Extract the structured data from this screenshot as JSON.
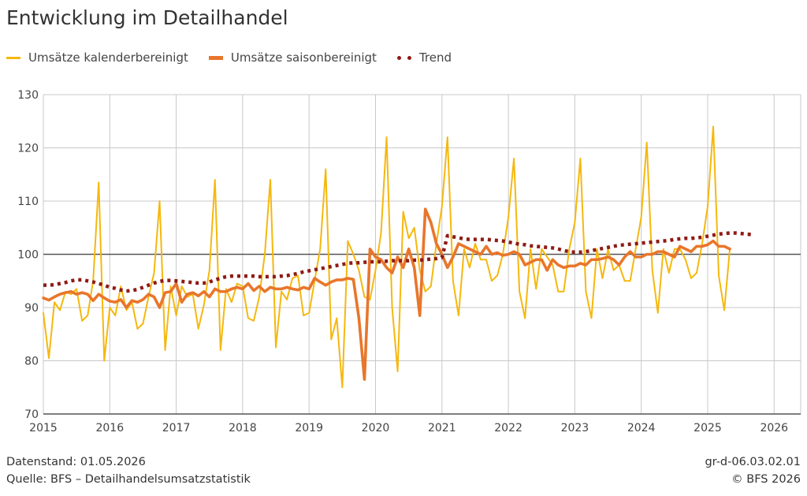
{
  "title": "Entwicklung im Detailhandel",
  "legend": [
    {
      "label": "Umsätze kalenderbereinigt",
      "color": "#F5B80E",
      "style": "solid"
    },
    {
      "label": "Umsätze saisonbereinigt",
      "color": "#E8762B",
      "style": "solid"
    },
    {
      "label": "Trend",
      "color": "#8E1B15",
      "style": "dotted"
    }
  ],
  "footer": {
    "datenstand": "Datenstand: 01.05.2026",
    "quelle": "Quelle: BFS – Detailhandelsumsatzstatistik",
    "code": "gr-d-06.03.02.01",
    "copyright": "© BFS 2026"
  },
  "chart_data": {
    "type": "line",
    "title": "Entwicklung im Detailhandel",
    "xlabel": "",
    "ylabel": "",
    "xlim": [
      2015,
      2026.4
    ],
    "ylim": [
      70,
      130
    ],
    "x_ticks": [
      2015,
      2016,
      2017,
      2018,
      2019,
      2020,
      2021,
      2022,
      2023,
      2024,
      2025,
      2026
    ],
    "y_ticks": [
      70,
      80,
      90,
      100,
      110,
      120,
      130
    ],
    "reference_line": 100,
    "grid": true,
    "legend_position": "top-left",
    "x_start": "2015-01",
    "x_step": "1 month",
    "series": [
      {
        "name": "Umsätze kalenderbereinigt",
        "color": "#F5B80E",
        "values": [
          89,
          80.5,
          91,
          89.5,
          93,
          92.5,
          93.5,
          87.5,
          88.5,
          95,
          113.5,
          80,
          90,
          88.5,
          94,
          89.5,
          91,
          86,
          87,
          92,
          96.5,
          110,
          82,
          94,
          88.5,
          94,
          92,
          92.5,
          86,
          90.5,
          97,
          114,
          82,
          93.5,
          91,
          94.5,
          94,
          88,
          87.5,
          92,
          100,
          114,
          82.5,
          93,
          91.5,
          95.5,
          96,
          88.5,
          89,
          95,
          101,
          116,
          84,
          88,
          75,
          102.5,
          100,
          97,
          92,
          91.5,
          97,
          104,
          122,
          90,
          78,
          108,
          103,
          105,
          97,
          93,
          94,
          102,
          109,
          122,
          95,
          88.5,
          101,
          97.5,
          102,
          99,
          99,
          95,
          96,
          100,
          107,
          118,
          93,
          88,
          101,
          93.5,
          101,
          99.5,
          98,
          93,
          93,
          101,
          106,
          118,
          93,
          88,
          101,
          95.5,
          101,
          97,
          98,
          95,
          95,
          101,
          107,
          121,
          97,
          89,
          101,
          96.5,
          101,
          101,
          99,
          95.5,
          96.5,
          102,
          109,
          124,
          96,
          89.5,
          101
        ]
      },
      {
        "name": "Umsätze saisonbereinigt",
        "color": "#E8762B",
        "values": [
          91.8,
          91.4,
          92,
          92.5,
          92.8,
          93,
          92.5,
          92.8,
          92.5,
          91.3,
          92.5,
          91.8,
          91.2,
          91,
          91.5,
          90,
          91.3,
          91,
          91.5,
          92.5,
          92,
          90,
          92.8,
          93,
          94.5,
          91,
          92.5,
          92.8,
          92.2,
          93,
          92,
          93.5,
          93,
          93,
          93.5,
          93.8,
          93.5,
          94.5,
          93.2,
          94,
          93,
          93.8,
          93.5,
          93.5,
          93.8,
          93.5,
          93.3,
          93.8,
          93.5,
          95.5,
          94.8,
          94.2,
          94.8,
          95.2,
          95.2,
          95.5,
          95.3,
          88,
          76.5,
          101,
          99.5,
          99,
          97.5,
          96.5,
          99.5,
          97.5,
          101,
          97.5,
          88.5,
          108.5,
          106,
          102,
          100,
          97.5,
          99.5,
          102,
          101.5,
          101,
          100.5,
          100,
          101.5,
          100,
          100.3,
          99.8,
          100,
          100.5,
          100,
          98,
          98.5,
          99,
          99,
          97,
          99,
          98,
          97.5,
          97.8,
          97.8,
          98.3,
          98,
          99,
          99,
          99.2,
          99.5,
          99,
          98,
          99.5,
          100.5,
          99.5,
          99.5,
          100,
          100,
          100.5,
          100.5,
          100,
          99.5,
          101.5,
          101,
          100.5,
          101.5,
          101.5,
          101.8,
          102.5,
          101.5,
          101.5,
          101
        ]
      },
      {
        "name": "Trend",
        "color": "#8E1B15",
        "values": [
          94.2,
          94.2,
          94.3,
          94.5,
          94.7,
          95,
          95.2,
          95.2,
          95,
          94.8,
          94.5,
          94.2,
          93.8,
          93.6,
          93.3,
          93.1,
          93.2,
          93.4,
          93.8,
          94.2,
          94.6,
          94.9,
          95.1,
          95.1,
          95,
          94.9,
          94.8,
          94.7,
          94.6,
          94.6,
          94.8,
          95.2,
          95.5,
          95.8,
          95.9,
          95.9,
          95.9,
          95.9,
          95.9,
          95.8,
          95.8,
          95.8,
          95.8,
          95.9,
          96,
          96.2,
          96.4,
          96.7,
          96.9,
          97.1,
          97.3,
          97.5,
          97.7,
          97.9,
          98.1,
          98.3,
          98.4,
          98.4,
          98.5,
          98.6,
          98.6,
          98.6,
          98.7,
          98.8,
          98.8,
          98.8,
          98.8,
          98.9,
          98.9,
          99,
          99.1,
          99.2,
          99.4,
          103.5,
          103.3,
          103.1,
          102.9,
          102.8,
          102.8,
          102.8,
          102.8,
          102.7,
          102.6,
          102.5,
          102.3,
          102.1,
          101.9,
          101.8,
          101.6,
          101.5,
          101.4,
          101.3,
          101.2,
          101,
          100.7,
          100.5,
          100.4,
          100.4,
          100.5,
          100.7,
          100.9,
          101.1,
          101.3,
          101.5,
          101.7,
          101.8,
          101.9,
          102,
          102.1,
          102.2,
          102.3,
          102.4,
          102.5,
          102.6,
          102.8,
          102.9,
          103,
          103,
          103.1,
          103.2,
          103.4,
          103.6,
          103.8,
          103.9,
          104,
          104,
          103.9,
          103.8,
          103.7
        ]
      }
    ]
  }
}
